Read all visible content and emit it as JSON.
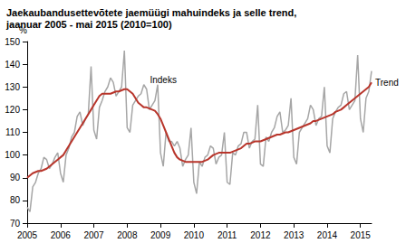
{
  "chart_data": {
    "type": "line",
    "title": "Jaekaubandusettevõtete jaemüügi mahuindeks ja selle trend,",
    "subtitle": "jaanuar 2005 - mai 2015 (2010=100)",
    "y_label": "%",
    "categories": [
      "2005",
      null,
      null,
      null,
      null,
      null,
      null,
      null,
      null,
      null,
      null,
      null,
      "2006",
      null,
      null,
      null,
      null,
      null,
      null,
      null,
      null,
      null,
      null,
      null,
      "2007",
      null,
      null,
      null,
      null,
      null,
      null,
      null,
      null,
      null,
      null,
      null,
      "2008",
      null,
      null,
      null,
      null,
      null,
      null,
      null,
      null,
      null,
      null,
      null,
      "2009",
      null,
      null,
      null,
      null,
      null,
      null,
      null,
      null,
      null,
      null,
      null,
      "2010",
      null,
      null,
      null,
      null,
      null,
      null,
      null,
      null,
      null,
      null,
      null,
      "2011",
      null,
      null,
      null,
      null,
      null,
      null,
      null,
      null,
      null,
      null,
      null,
      "2012",
      null,
      null,
      null,
      null,
      null,
      null,
      null,
      null,
      null,
      null,
      null,
      "2013",
      null,
      null,
      null,
      null,
      null,
      null,
      null,
      null,
      null,
      null,
      null,
      "2014",
      null,
      null,
      null,
      null,
      null,
      null,
      null,
      null,
      null,
      null,
      null,
      "2015",
      null,
      null,
      null,
      null
    ],
    "series": [
      {
        "name": "Indeks",
        "color": "#a6a6a6",
        "values": [
          77,
          75,
          86,
          88,
          92,
          94,
          99,
          98,
          94,
          96,
          99,
          101,
          92,
          88,
          100,
          103,
          108,
          110,
          117,
          119,
          113,
          116,
          118,
          139,
          111,
          107,
          121,
          124,
          128,
          130,
          134,
          132,
          126,
          128,
          130,
          146,
          112,
          110,
          122,
          124,
          126,
          127,
          131,
          129,
          120,
          122,
          124,
          131,
          101,
          95,
          110,
          106,
          106,
          104,
          106,
          103,
          95,
          98,
          100,
          112,
          88,
          83,
          97,
          95,
          99,
          100,
          104,
          103,
          96,
          99,
          100,
          110,
          88,
          87,
          101,
          100,
          104,
          105,
          110,
          110,
          103,
          106,
          107,
          122,
          96,
          95,
          108,
          106,
          110,
          112,
          117,
          119,
          110,
          111,
          113,
          125,
          99,
          96,
          110,
          112,
          114,
          116,
          122,
          120,
          113,
          116,
          117,
          130,
          104,
          101,
          116,
          119,
          121,
          122,
          127,
          128,
          120,
          122,
          124,
          144,
          116,
          110,
          125,
          128,
          137
        ]
      },
      {
        "name": "Trend",
        "color": "#b8352b",
        "values": [
          90,
          91,
          92,
          92.5,
          93,
          93,
          93.5,
          94,
          95,
          96,
          97,
          98,
          99,
          100,
          102,
          104,
          106,
          108,
          110,
          112,
          114,
          116,
          118,
          120,
          122,
          124,
          126,
          127,
          127,
          127,
          127,
          127.5,
          128,
          128,
          128.5,
          129,
          129,
          128,
          127,
          125,
          123,
          122,
          121,
          121,
          120.5,
          120,
          119.5,
          118,
          116,
          113,
          110,
          107,
          104,
          101,
          99,
          98,
          97.5,
          97,
          97,
          97,
          97,
          97,
          97,
          97,
          97.5,
          98,
          99,
          100,
          100.5,
          101,
          101,
          101,
          101,
          101,
          101.5,
          102,
          102.5,
          103,
          104,
          105,
          105,
          105.5,
          106,
          106,
          106,
          106.5,
          107,
          107.5,
          108,
          108.5,
          109,
          109,
          109.5,
          110,
          110,
          110.5,
          111,
          111.5,
          112,
          112.5,
          113,
          113.5,
          114,
          115,
          115,
          115.5,
          116,
          116.5,
          117,
          117.5,
          118,
          119,
          119.5,
          120,
          121,
          122,
          123,
          124,
          125,
          126,
          127,
          128,
          129,
          130,
          132
        ]
      }
    ],
    "annotations": [
      {
        "text": "Indeks",
        "category_index": 49,
        "value": 133
      }
    ],
    "ylim": [
      70,
      150
    ],
    "yticks": [
      70,
      80,
      90,
      100,
      110,
      120,
      130,
      140,
      150
    ],
    "grid": false
  }
}
